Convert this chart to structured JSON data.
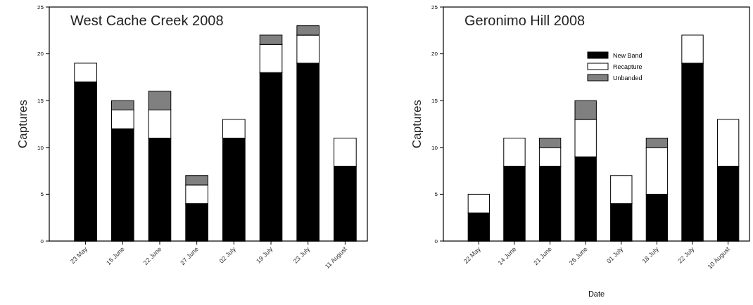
{
  "chart_data": [
    {
      "type": "bar",
      "stacked": true,
      "title": "West Cache Creek 2008",
      "ylabel": "Captures",
      "categories": [
        "23 May",
        "15 June",
        "22 June",
        "27 June",
        "02 July",
        "19 July",
        "23 July",
        "11 August"
      ],
      "ylim": [
        0,
        25
      ],
      "yticks": [
        0,
        5,
        10,
        15,
        20,
        25
      ],
      "legend": false,
      "series": [
        {
          "color": "#000000",
          "values": [
            17,
            12,
            11,
            4,
            11,
            18,
            19,
            8
          ]
        },
        {
          "color": "#ffffff",
          "values": [
            2,
            2,
            3,
            2,
            2,
            3,
            3,
            3
          ]
        },
        {
          "color": "#808080",
          "values": [
            0,
            1,
            2,
            1,
            0,
            1,
            1,
            0
          ]
        }
      ]
    },
    {
      "type": "bar",
      "stacked": true,
      "title": "Geronimo Hill 2008",
      "ylabel": "Captures",
      "xlabel": "Date",
      "categories": [
        "22 May",
        "14 June",
        "21 June",
        "26  June",
        "01 July",
        "18 July",
        "22 July",
        "10 August"
      ],
      "ylim": [
        0,
        25
      ],
      "yticks": [
        0,
        5,
        10,
        15,
        20,
        25
      ],
      "legend": "top right",
      "series": [
        {
          "name": "New Band",
          "color": "#000000",
          "values": [
            3,
            8,
            8,
            9,
            4,
            5,
            19,
            8
          ]
        },
        {
          "name": "Recapture",
          "color": "#ffffff",
          "values": [
            2,
            3,
            2,
            4,
            3,
            5,
            3,
            5
          ]
        },
        {
          "name": "Unbanded",
          "color": "#808080",
          "values": [
            0,
            0,
            1,
            2,
            0,
            1,
            0,
            0
          ]
        }
      ]
    }
  ]
}
